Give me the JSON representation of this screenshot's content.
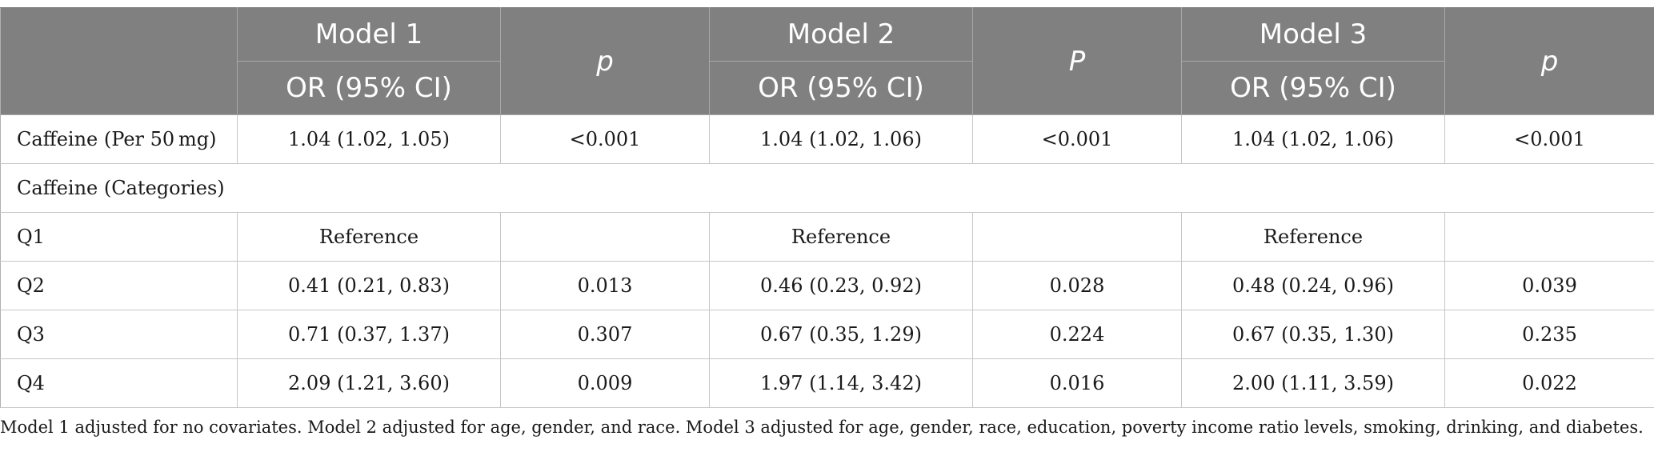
{
  "header": {
    "model1": "Model 1",
    "p1": "p",
    "model2": "Model 2",
    "p2": "P",
    "model3": "Model 3",
    "p3": "p",
    "or1": "OR (95% CI)",
    "or2": "OR (95% CI)",
    "or3": "OR (95% CI)"
  },
  "rows": [
    {
      "label": "Caffeine (Per 50 mg)",
      "m1": "1.04 (1.02, 1.05)",
      "p1": "<0.001",
      "m2": "1.04 (1.02, 1.06)",
      "p2": "<0.001",
      "m3": "1.04 (1.02, 1.06)",
      "p3": "<0.001"
    },
    {
      "label": "Caffeine (Categories)"
    },
    {
      "label": "Q1",
      "m1": "Reference",
      "p1": "",
      "m2": "Reference",
      "p2": "",
      "m3": "Reference",
      "p3": ""
    },
    {
      "label": "Q2",
      "m1": "0.41 (0.21, 0.83)",
      "p1": "0.013",
      "m2": "0.46 (0.23, 0.92)",
      "p2": "0.028",
      "m3": "0.48 (0.24, 0.96)",
      "p3": "0.039"
    },
    {
      "label": "Q3",
      "m1": "0.71 (0.37, 1.37)",
      "p1": "0.307",
      "m2": "0.67 (0.35, 1.29)",
      "p2": "0.224",
      "m3": "0.67 (0.35, 1.30)",
      "p3": "0.235"
    },
    {
      "label": "Q4",
      "m1": "2.09 (1.21, 3.60)",
      "p1": "0.009",
      "m2": "1.97 (1.14, 3.42)",
      "p2": "0.016",
      "m3": "2.00 (1.11, 3.59)",
      "p3": "0.022"
    }
  ],
  "footnote": "Model 1 adjusted for no covariates. Model 2 adjusted for age, gender, and race. Model 3 adjusted for age, gender, race, education, poverty income ratio levels, smoking, drinking, and diabetes.",
  "colors": {
    "header_bg": "#808080",
    "header_text": "#ffffff",
    "grid": "#c6c6c6"
  }
}
